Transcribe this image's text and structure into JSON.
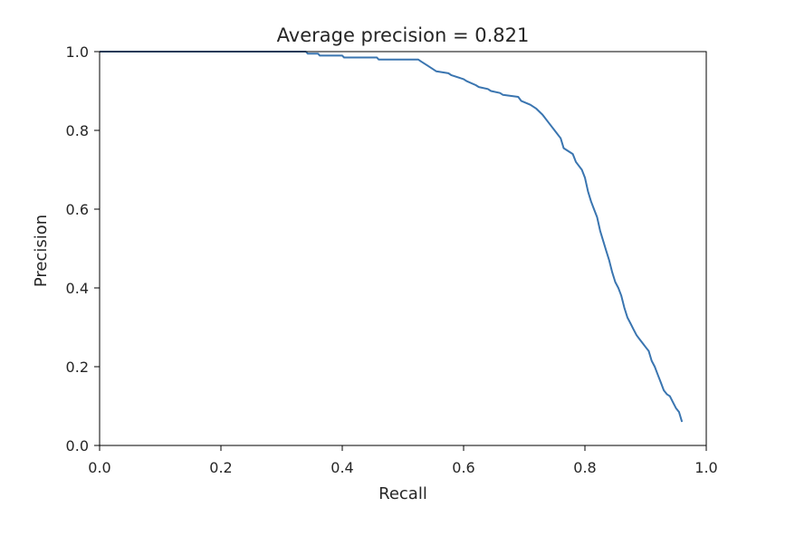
{
  "chart_data": {
    "type": "line",
    "title": "Average precision = 0.821",
    "xlabel": "Recall",
    "ylabel": "Precision",
    "xlim": [
      0.0,
      1.0
    ],
    "ylim": [
      0.0,
      1.0
    ],
    "xticks": [
      "0.0",
      "0.2",
      "0.4",
      "0.6",
      "0.8",
      "1.0"
    ],
    "yticks": [
      "0.0",
      "0.2",
      "0.4",
      "0.6",
      "0.8",
      "1.0"
    ],
    "grid": false,
    "line_color": "#3a75b0",
    "series": [
      {
        "x": [
          0.0,
          0.34,
          0.343,
          0.36,
          0.363,
          0.4,
          0.403,
          0.457,
          0.46,
          0.525,
          0.53,
          0.54,
          0.55,
          0.555,
          0.575,
          0.58,
          0.6,
          0.605,
          0.62,
          0.625,
          0.64,
          0.645,
          0.66,
          0.665,
          0.69,
          0.695,
          0.71,
          0.72,
          0.73,
          0.74,
          0.75,
          0.76,
          0.765,
          0.78,
          0.785,
          0.795,
          0.8,
          0.805,
          0.81,
          0.815,
          0.82,
          0.825,
          0.83,
          0.835,
          0.84,
          0.845,
          0.85,
          0.855,
          0.86,
          0.865,
          0.87,
          0.875,
          0.88,
          0.885,
          0.89,
          0.895,
          0.9,
          0.905,
          0.91,
          0.915,
          0.92,
          0.925,
          0.93,
          0.935,
          0.94,
          0.945,
          0.95,
          0.955,
          0.96
        ],
        "y": [
          1.0,
          1.0,
          0.995,
          0.995,
          0.99,
          0.99,
          0.985,
          0.985,
          0.98,
          0.98,
          0.975,
          0.965,
          0.955,
          0.95,
          0.945,
          0.94,
          0.93,
          0.925,
          0.915,
          0.91,
          0.905,
          0.9,
          0.895,
          0.89,
          0.885,
          0.875,
          0.865,
          0.855,
          0.84,
          0.82,
          0.8,
          0.78,
          0.755,
          0.74,
          0.72,
          0.7,
          0.68,
          0.645,
          0.62,
          0.6,
          0.58,
          0.545,
          0.52,
          0.495,
          0.47,
          0.44,
          0.415,
          0.4,
          0.38,
          0.35,
          0.325,
          0.31,
          0.295,
          0.28,
          0.27,
          0.26,
          0.25,
          0.24,
          0.215,
          0.2,
          0.18,
          0.16,
          0.14,
          0.13,
          0.125,
          0.11,
          0.095,
          0.085,
          0.06
        ]
      }
    ]
  }
}
